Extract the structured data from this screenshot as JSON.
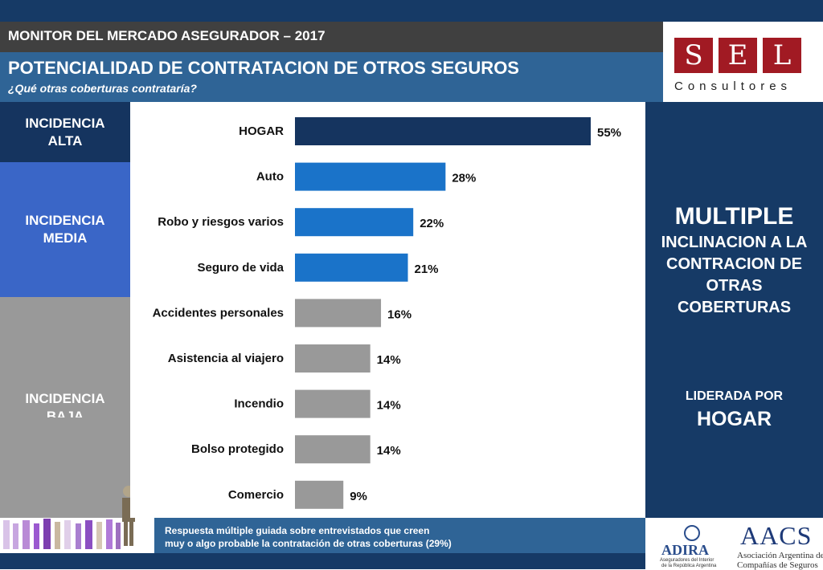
{
  "header": {
    "subtitle": "MONITOR DEL MERCADO ASEGURADOR – 2017",
    "title": "POTENCIALIDAD DE CONTRATACION DE OTROS SEGUROS",
    "question": "¿Qué otras coberturas contrataría?"
  },
  "logo": {
    "letters": [
      "S",
      "E",
      "L"
    ],
    "subtext": "Consultores"
  },
  "bands": {
    "alta": "INCIDENCIA ALTA",
    "media": "INCIDENCIA MEDIA",
    "baja": "INCIDENCIA BAJA"
  },
  "side": {
    "main": "MULTIPLE",
    "line1": "INCLINACION A LA",
    "line2": "CONTRACION DE",
    "line3": "OTRAS",
    "line4": "COBERTURAS",
    "led": "LIDERADA POR",
    "hogar": "HOGAR"
  },
  "note": {
    "line1": "Respuesta múltiple guiada sobre entrevistados que creen",
    "line2": "muy o algo probable la contratación de otras coberturas (29%)"
  },
  "footer_logos": {
    "adira": "ADIRA",
    "adira_sub1": "Aseguradores del Interior",
    "adira_sub2": "de la República Argentina",
    "aacs": "AACS",
    "aacs_sub1": "Asociación Argentina de",
    "aacs_sub2": "Compañías de Seguros"
  },
  "colors": {
    "alta": "#15345f",
    "media": "#1a73c9",
    "baja": "#999999"
  },
  "chart_data": {
    "type": "bar",
    "orientation": "horizontal",
    "categories": [
      "HOGAR",
      "Auto",
      "Robo y riesgos varios",
      "Seguro de vida",
      "Accidentes personales",
      "Asistencia al viajero",
      "Incendio",
      "Bolso protegido",
      "Comercio"
    ],
    "values": [
      55,
      28,
      22,
      21,
      16,
      14,
      14,
      14,
      9
    ],
    "value_labels": [
      "55%",
      "28%",
      "22%",
      "21%",
      "16%",
      "14%",
      "14%",
      "14%",
      "9%"
    ],
    "groups": [
      "alta",
      "media",
      "media",
      "media",
      "baja",
      "baja",
      "baja",
      "baja",
      "baja"
    ],
    "xlim": [
      0,
      55
    ],
    "grid": false,
    "legend": "none"
  }
}
